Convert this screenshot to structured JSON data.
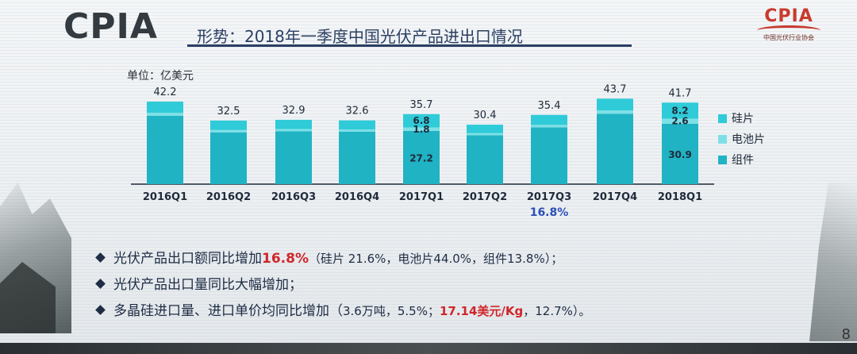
{
  "header": {
    "brand": "CPIA",
    "title": "形势：2018年一季度中国光伏产品进出口情况",
    "logo_text": "CPIA",
    "logo_subtitle": "中国光伏行业协会",
    "page_number": "8"
  },
  "chart_data": {
    "type": "bar",
    "ylabel": "单位：亿美元",
    "categories": [
      "2016Q1",
      "2016Q2",
      "2016Q3",
      "2016Q4",
      "2017Q1",
      "2017Q2",
      "2017Q3",
      "2017Q4",
      "2018Q1"
    ],
    "totals": [
      "42.2",
      "32.5",
      "32.9",
      "32.6",
      "35.7",
      "30.4",
      "35.4",
      "43.7",
      "41.7"
    ],
    "total_values": [
      42.2,
      32.5,
      32.9,
      32.6,
      35.7,
      30.4,
      35.4,
      43.7,
      41.7
    ],
    "series": [
      {
        "name": "组件",
        "values": [
          35.0,
          26.5,
          27.0,
          26.8,
          27.2,
          25.0,
          29.0,
          36.0,
          30.9
        ],
        "color": "#20b3c4"
      },
      {
        "name": "电池片",
        "values": [
          1.5,
          1.2,
          1.2,
          1.2,
          1.8,
          1.1,
          1.3,
          1.7,
          2.6
        ],
        "color": "#7ee0e6"
      },
      {
        "name": "硅片",
        "values": [
          5.7,
          4.8,
          4.7,
          4.6,
          6.8,
          4.3,
          5.1,
          6.0,
          8.2
        ],
        "color": "#2fcbd8"
      }
    ],
    "segment_labels": [
      {
        "category": "2017Q1",
        "labels": [
          "27.2",
          "1.8",
          "6.8"
        ]
      },
      {
        "category": "2018Q1",
        "labels": [
          "30.9",
          "2.6",
          "8.2"
        ]
      }
    ],
    "growth_annotation": {
      "category": "2017Q3",
      "text": "16.8%"
    },
    "legend": [
      "硅片",
      "电池片",
      "组件"
    ],
    "legend_position": "right",
    "ylim": [
      0,
      50
    ],
    "grid": false
  },
  "bullets": [
    {
      "text_before": "光伏产品出口额同比增加",
      "highlight": "16.8%",
      "text_after": "（硅片 21.6%，电池片44.0%，组件13.8%）；"
    },
    {
      "text_before": "光伏产品出口量同比大幅增加；",
      "highlight": "",
      "text_after": ""
    },
    {
      "text_before": "多晶硅进口量、进口单价均同比增加（",
      "text_small1": "3.6万吨，5.5%；",
      "highlight": "17.14美元/Kg",
      "text_small2": "，12.7%）。"
    }
  ]
}
